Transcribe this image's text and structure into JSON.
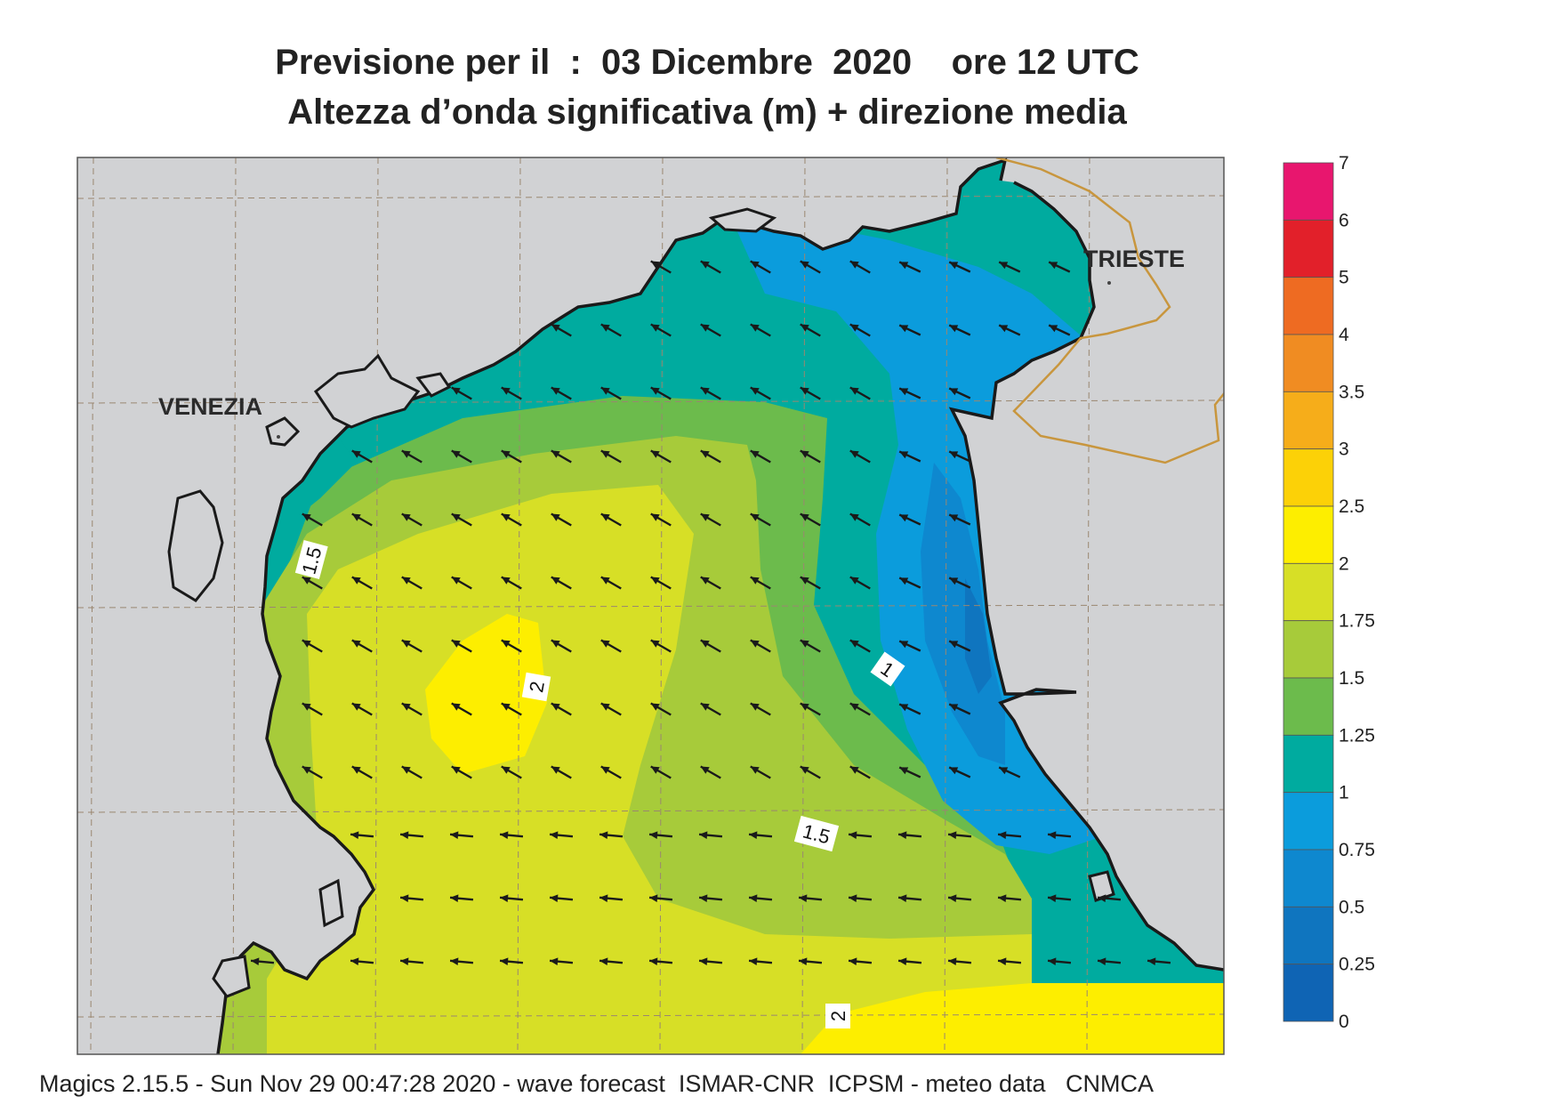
{
  "title": {
    "line1": "Previsione per il  :  03 Dicembre  2020    ore 12 UTC",
    "line2": "Altezza d’onda significativa (m) + direzione media"
  },
  "cities": {
    "venezia": "VENEZIA",
    "trieste": "TRIESTE"
  },
  "contour_labels": [
    "1.5",
    "2",
    "1",
    "1.5",
    "2"
  ],
  "legend": {
    "levels": [
      "7",
      "6",
      "5",
      "4",
      "3.5",
      "3",
      "2.5",
      "2",
      "1.75",
      "1.5",
      "1.25",
      "1",
      "0.75",
      "0.5",
      "0.25",
      "0"
    ],
    "colors": [
      "#e8166e",
      "#e2202a",
      "#ee6b22",
      "#f08c22",
      "#f6ad1a",
      "#fcd107",
      "#fdee00",
      "#d7df26",
      "#a7cb3a",
      "#6cbb4c",
      "#00ab9f",
      "#0b9cdc",
      "#0e88cf",
      "#0f75bf",
      "#0f64b4"
    ]
  },
  "colors": {
    "land": "#d1d2d4",
    "coast": "#1a1a1a",
    "border": "#c8963e",
    "arrow": "#1a1a1a"
  },
  "footer": "Magics 2.15.5 - Sun Nov 29 00:47:28 2020 - wave forecast  ISMAR-CNR  ICPSM - meteo data   CNMCA"
}
